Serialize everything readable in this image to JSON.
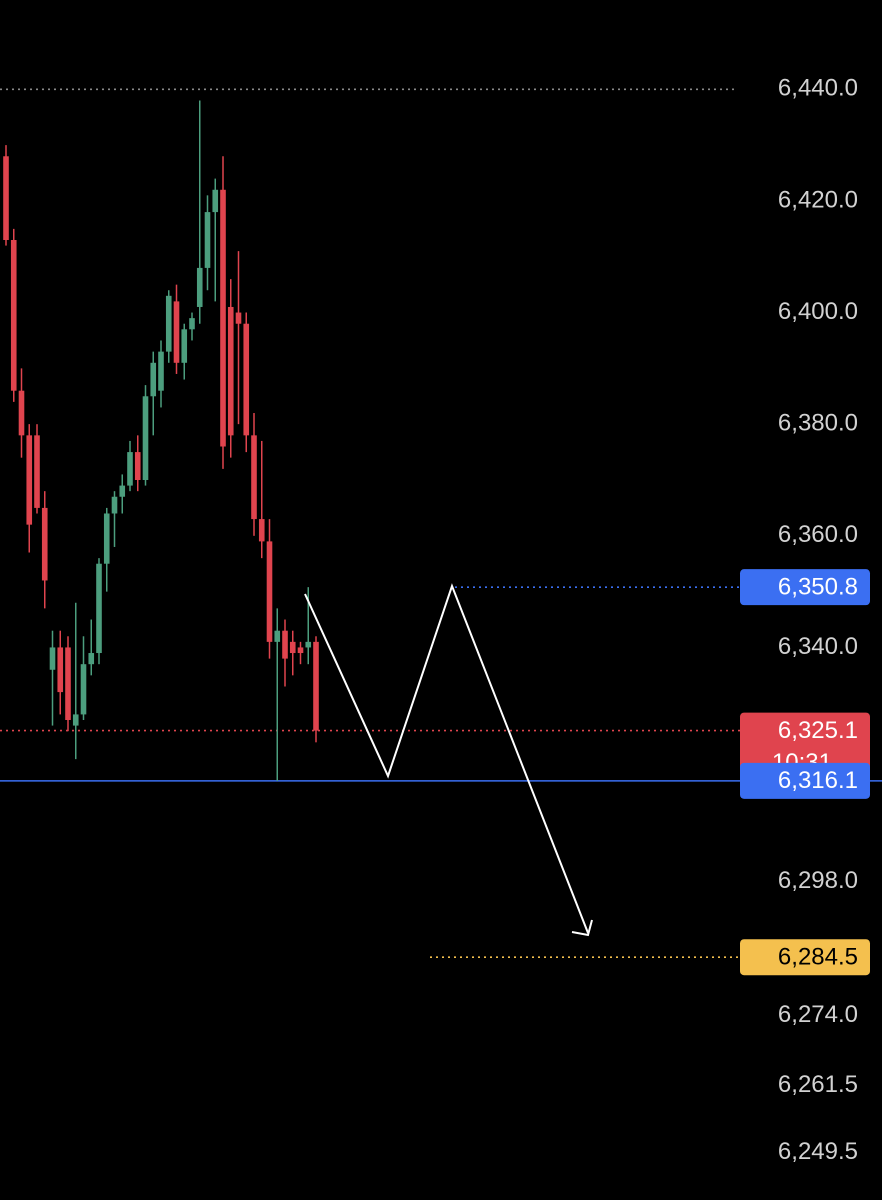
{
  "chart_data": {
    "type": "candlestick",
    "ylim": [
      6241,
      6456
    ],
    "yticks": [
      {
        "value": 6440,
        "label": "6,440.0"
      },
      {
        "value": 6420,
        "label": "6,420.0"
      },
      {
        "value": 6400,
        "label": "6,400.0"
      },
      {
        "value": 6380,
        "label": "6,380.0"
      },
      {
        "value": 6360,
        "label": "6,360.0"
      },
      {
        "value": 6340,
        "label": "6,340.0"
      },
      {
        "value": 6298,
        "label": "6,298.0"
      },
      {
        "value": 6274,
        "label": "6,274.0"
      },
      {
        "value": 6261.5,
        "label": "6,261.5"
      },
      {
        "value": 6249.5,
        "label": "6,249.5"
      }
    ],
    "up_color": "#4c9e7e",
    "down_color": "#e0444e",
    "open": [
      6428,
      6413,
      6386,
      6378,
      6378,
      6365,
      6336,
      6340,
      6340,
      6326,
      6328,
      6337,
      6339,
      6355,
      6364,
      6367,
      6369,
      6375,
      6370,
      6385,
      6386,
      6393,
      6402,
      6391,
      6397,
      6401,
      6408,
      6418,
      6422,
      6401,
      6400,
      6398,
      6378,
      6363,
      6359,
      6341,
      6343,
      6341,
      6340,
      6340,
      6341
    ],
    "high": [
      6430,
      6415,
      6390,
      6380,
      6380,
      6368,
      6343,
      6343,
      6342,
      6348,
      6342,
      6345,
      6356,
      6365,
      6368,
      6371,
      6377,
      6378,
      6387,
      6393,
      6395,
      6404,
      6405,
      6398,
      6400,
      6438,
      6421,
      6424,
      6428,
      6406,
      6411,
      6400,
      6382,
      6377,
      6363,
      6347,
      6345,
      6343,
      6341,
      6350.8,
      6342
    ],
    "low": [
      6412,
      6384,
      6374,
      6357,
      6364,
      6347,
      6326,
      6328,
      6325,
      6320,
      6327,
      6335,
      6337,
      6350,
      6358,
      6364,
      6368,
      6368,
      6369,
      6378,
      6383,
      6391,
      6389,
      6388,
      6395,
      6398,
      6404,
      6402,
      6372,
      6374,
      6380,
      6375,
      6360,
      6356,
      6338,
      6316.1,
      6333,
      6335,
      6337,
      6337,
      6323
    ],
    "close": [
      6413,
      6386,
      6378,
      6362,
      6365,
      6352,
      6340,
      6332,
      6327,
      6328,
      6337,
      6339,
      6355,
      6364,
      6367,
      6369,
      6375,
      6370,
      6385,
      6391,
      6393,
      6403,
      6391,
      6397,
      6399,
      6408,
      6418,
      6422,
      6376,
      6378,
      6398,
      6378,
      6363,
      6359,
      6341,
      6343,
      6338,
      6339,
      6339,
      6341,
      6325.1
    ],
    "levels": [
      {
        "value": 6440,
        "color": "#8a8a8a",
        "style": "dotted"
      },
      {
        "value": 6350.8,
        "label": "6,350.8",
        "color": "#3b6ff2",
        "style": "dotted"
      },
      {
        "value": 6325.1,
        "label": "6,325.1",
        "time": "10:31",
        "color": "#e0444e",
        "style": "dotted"
      },
      {
        "value": 6316.1,
        "label": "6,316.1",
        "color": "#3b6ff2",
        "style": "solid"
      },
      {
        "value": 6284.5,
        "label": "6,284.5",
        "color": "#f4c04e",
        "style": "dotted"
      }
    ]
  }
}
